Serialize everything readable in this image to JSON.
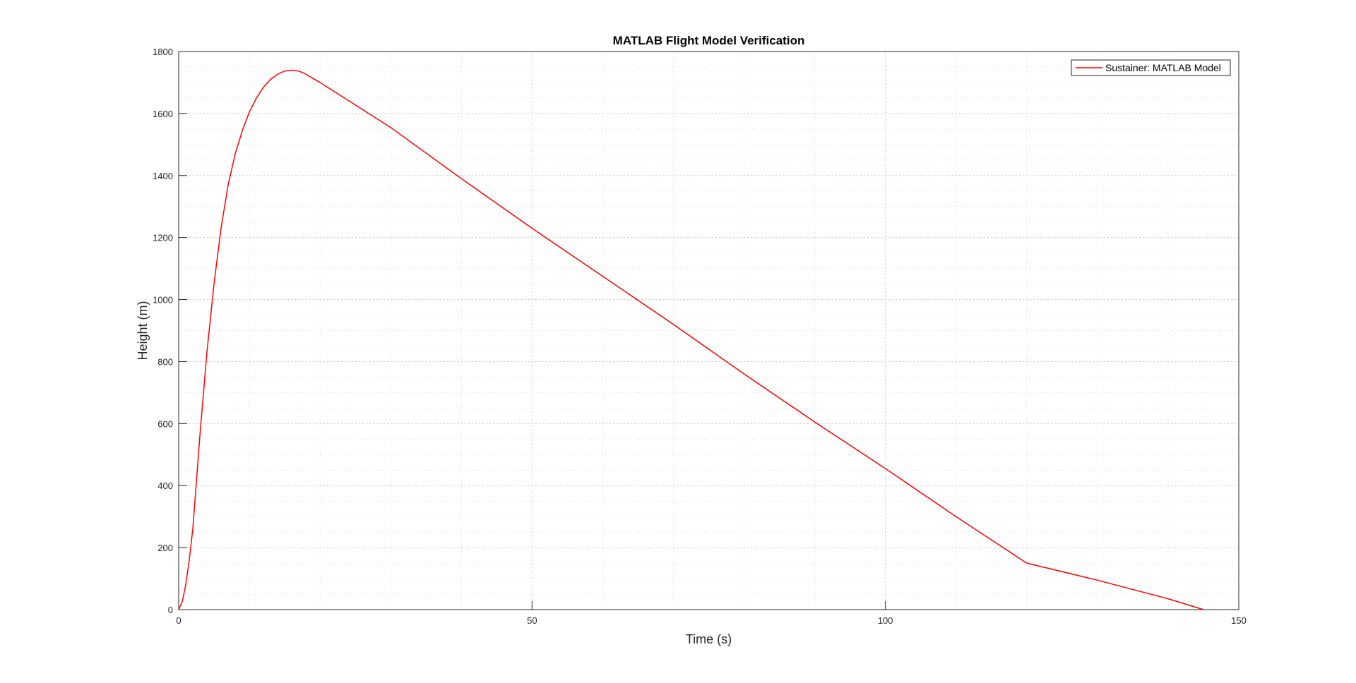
{
  "chart_data": {
    "type": "line",
    "title": "MATLAB Flight Model Verification",
    "xlabel": "Time (s)",
    "ylabel": "Height (m)",
    "xlim": [
      0,
      150
    ],
    "ylim": [
      0,
      1800
    ],
    "xticks": [
      0,
      50,
      100,
      150
    ],
    "yticks": [
      0,
      200,
      400,
      600,
      800,
      1000,
      1200,
      1400,
      1600,
      1800
    ],
    "x_minor_step": 10,
    "y_minor_step": 50,
    "grid": true,
    "minor_grid": true,
    "legend_position": "top-right",
    "series": [
      {
        "name": "Sustainer: MATLAB Model",
        "color": "#ff0000",
        "x": [
          0,
          0.5,
          1,
          1.5,
          2,
          3,
          4,
          5,
          6,
          7,
          8,
          9,
          10,
          11,
          12,
          13,
          14,
          15,
          16,
          17,
          18,
          19,
          20,
          30,
          40,
          50,
          60,
          70,
          80,
          90,
          100,
          110,
          120,
          130,
          140,
          145
        ],
        "values": [
          0,
          25,
          80,
          160,
          260,
          560,
          830,
          1050,
          1230,
          1370,
          1470,
          1545,
          1605,
          1650,
          1685,
          1710,
          1727,
          1737,
          1740,
          1737,
          1727,
          1713,
          1700,
          1555,
          1390,
          1230,
          1075,
          920,
          760,
          605,
          455,
          300,
          150,
          95,
          35,
          0
        ]
      }
    ]
  }
}
